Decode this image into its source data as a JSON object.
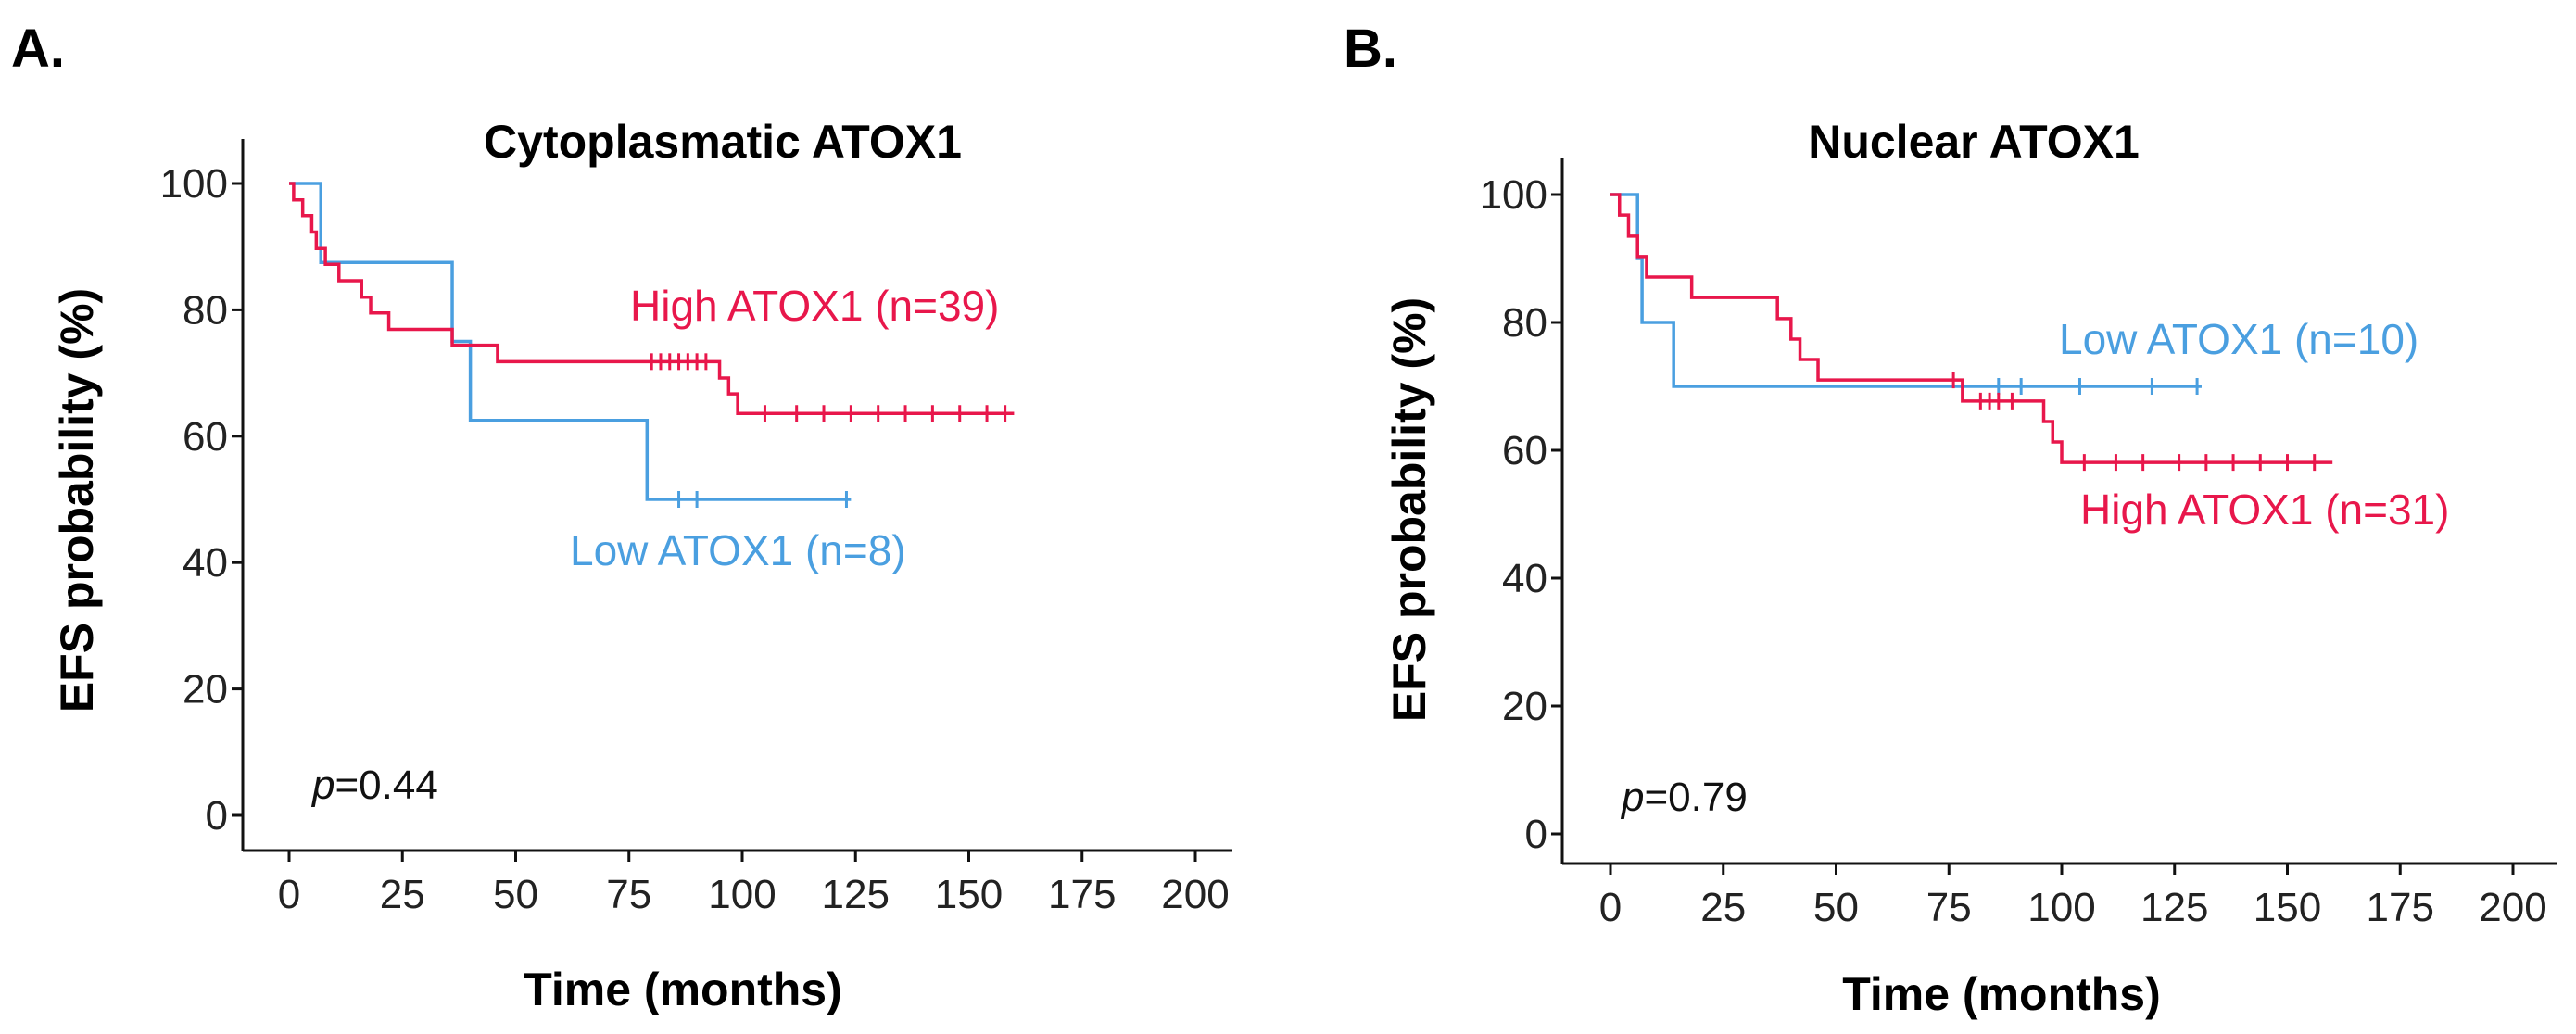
{
  "chart_data": [
    {
      "type": "line",
      "panel_label": "A.",
      "title": "Cytoplasmatic  ATOX1",
      "xlabel": "Time (months)",
      "ylabel": "EFS probability  (%)",
      "xlim": [
        0,
        200
      ],
      "ylim": [
        0,
        100
      ],
      "x_ticks": [
        0,
        25,
        50,
        75,
        100,
        125,
        150,
        175,
        200
      ],
      "y_ticks": [
        0,
        20,
        40,
        60,
        80,
        100
      ],
      "x_tick_labels": [
        "0",
        "25",
        "50",
        "75",
        "100",
        "125",
        "150",
        "175",
        "200"
      ],
      "y_tick_labels": [
        "0",
        "20",
        "40",
        "60",
        "80",
        "100"
      ],
      "p_value": {
        "prefix": "p",
        "value": "=0.44"
      },
      "series": [
        {
          "name": "High ATOX1 (n=39)",
          "color": "#e8174b",
          "steps": [
            [
              0,
              100
            ],
            [
              1,
              97.4
            ],
            [
              3,
              94.9
            ],
            [
              5,
              92.3
            ],
            [
              6,
              89.7
            ],
            [
              8,
              87.2
            ],
            [
              11,
              84.6
            ],
            [
              16,
              82
            ],
            [
              18,
              79.5
            ],
            [
              22,
              76.9
            ],
            [
              36,
              74.4
            ],
            [
              46,
              71.8
            ],
            [
              95,
              69.2
            ],
            [
              97,
              66.7
            ],
            [
              99,
              63.6
            ],
            [
              160,
              63.6
            ]
          ],
          "censors": [
            [
              80,
              71.8
            ],
            [
              82,
              71.8
            ],
            [
              84,
              71.8
            ],
            [
              86,
              71.8
            ],
            [
              88,
              71.8
            ],
            [
              90,
              71.8
            ],
            [
              92,
              71.8
            ],
            [
              105,
              63.6
            ],
            [
              112,
              63.6
            ],
            [
              118,
              63.6
            ],
            [
              124,
              63.6
            ],
            [
              130,
              63.6
            ],
            [
              136,
              63.6
            ],
            [
              142,
              63.6
            ],
            [
              148,
              63.6
            ],
            [
              154,
              63.6
            ],
            [
              158,
              63.6
            ]
          ]
        },
        {
          "name": "Low ATOX1 (n=8)",
          "color": "#4a9fe0",
          "steps": [
            [
              0,
              100
            ],
            [
              7,
              87.5
            ],
            [
              36,
              75
            ],
            [
              40,
              62.5
            ],
            [
              79,
              50
            ],
            [
              124,
              50
            ]
          ],
          "censors": [
            [
              86,
              50
            ],
            [
              90,
              50
            ],
            [
              123,
              50
            ]
          ]
        }
      ]
    },
    {
      "type": "line",
      "panel_label": "B.",
      "title": "Nuclear ATOX1",
      "xlabel": "Time (months)",
      "ylabel": "EFS probability  (%)",
      "xlim": [
        0,
        200
      ],
      "ylim": [
        0,
        100
      ],
      "x_ticks": [
        0,
        25,
        50,
        75,
        100,
        125,
        150,
        175,
        200
      ],
      "y_ticks": [
        0,
        20,
        40,
        60,
        80,
        100
      ],
      "x_tick_labels": [
        "0",
        "25",
        "50",
        "75",
        "100",
        "125",
        "150",
        "175",
        "200"
      ],
      "y_tick_labels": [
        "0",
        "20",
        "40",
        "60",
        "80",
        "100"
      ],
      "p_value": {
        "prefix": "p",
        "value": "=0.79"
      },
      "series": [
        {
          "name": "High ATOX1 (n=31)",
          "color": "#e8174b",
          "steps": [
            [
              0,
              100
            ],
            [
              2,
              96.8
            ],
            [
              4,
              93.5
            ],
            [
              6,
              90.3
            ],
            [
              8,
              87.1
            ],
            [
              18,
              83.9
            ],
            [
              37,
              80.6
            ],
            [
              40,
              77.4
            ],
            [
              42,
              74.2
            ],
            [
              46,
              71
            ],
            [
              78,
              67.7
            ],
            [
              96,
              64.5
            ],
            [
              98,
              61.3
            ],
            [
              100,
              58.1
            ],
            [
              160,
              58.1
            ]
          ],
          "censors": [
            [
              76,
              71
            ],
            [
              82,
              67.7
            ],
            [
              84,
              67.7
            ],
            [
              86,
              67.7
            ],
            [
              89,
              67.7
            ],
            [
              105,
              58.1
            ],
            [
              112,
              58.1
            ],
            [
              118,
              58.1
            ],
            [
              126,
              58.1
            ],
            [
              132,
              58.1
            ],
            [
              138,
              58.1
            ],
            [
              144,
              58.1
            ],
            [
              150,
              58.1
            ],
            [
              156,
              58.1
            ]
          ]
        },
        {
          "name": "Low ATOX1 (n=10)",
          "color": "#4a9fe0",
          "steps": [
            [
              0,
              100
            ],
            [
              6,
              90
            ],
            [
              7,
              80
            ],
            [
              14,
              70
            ],
            [
              131,
              70
            ]
          ],
          "censors": [
            [
              86,
              70
            ],
            [
              91,
              70
            ],
            [
              104,
              70
            ],
            [
              120,
              70
            ],
            [
              130,
              70
            ]
          ]
        }
      ]
    }
  ]
}
